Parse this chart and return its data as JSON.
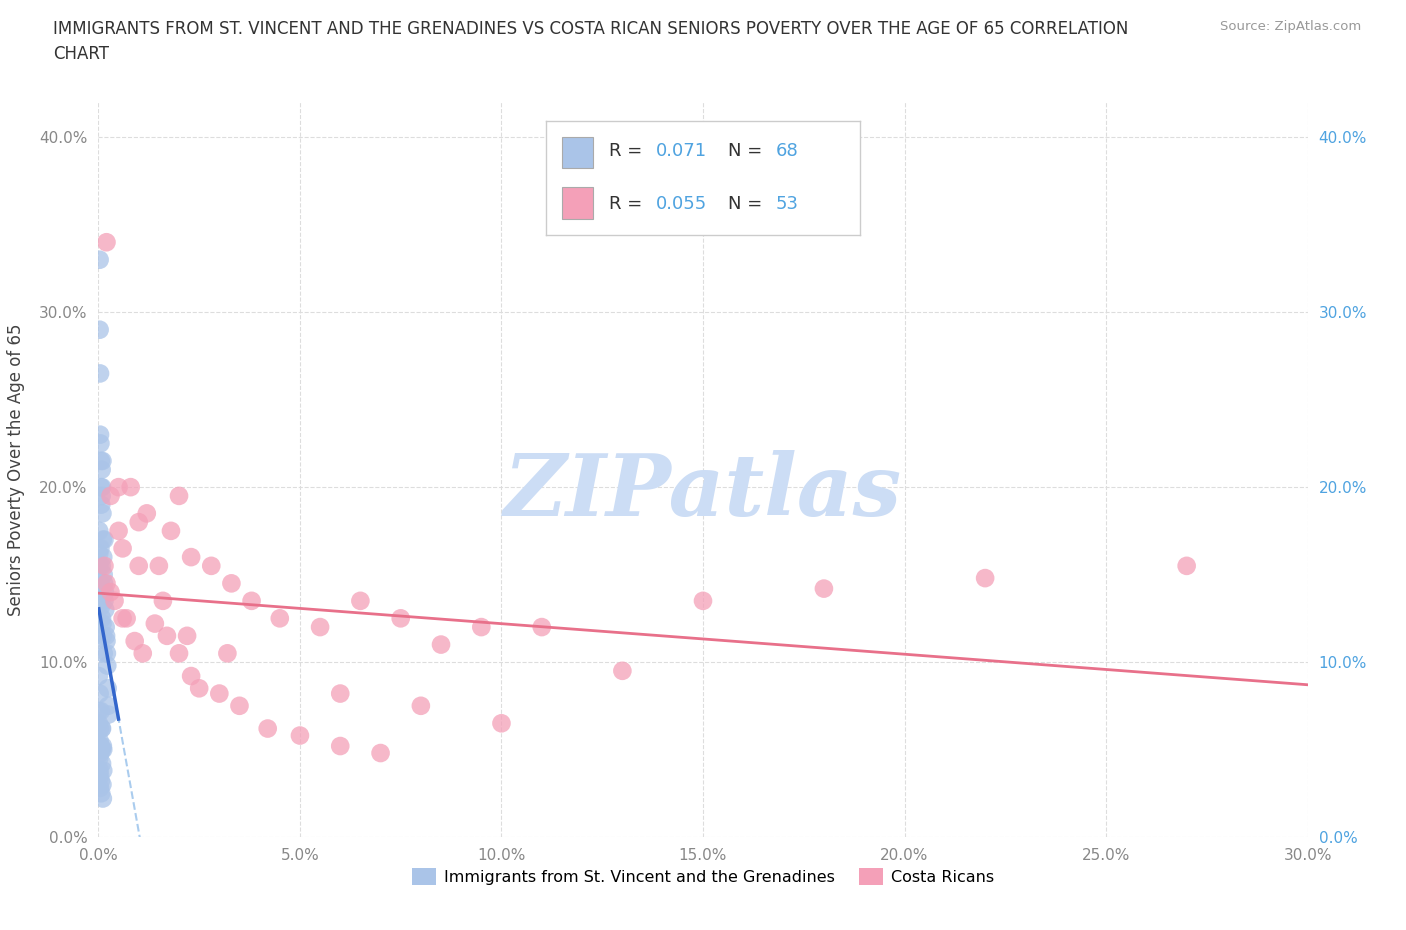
{
  "title_line1": "IMMIGRANTS FROM ST. VINCENT AND THE GRENADINES VS COSTA RICAN SENIORS POVERTY OVER THE AGE OF 65 CORRELATION",
  "title_line2": "CHART",
  "source_text": "Source: ZipAtlas.com",
  "watermark": "ZIPatlas",
  "ylabel": "Seniors Poverty Over the Age of 65",
  "xlim": [
    0.0,
    0.3
  ],
  "ylim": [
    0.0,
    0.42
  ],
  "xticks": [
    0.0,
    0.05,
    0.1,
    0.15,
    0.2,
    0.25,
    0.3
  ],
  "xtick_labels": [
    "0.0%",
    "5.0%",
    "10.0%",
    "15.0%",
    "20.0%",
    "25.0%",
    "30.0%"
  ],
  "yticks": [
    0.0,
    0.1,
    0.2,
    0.3,
    0.4
  ],
  "ytick_labels": [
    "0.0%",
    "10.0%",
    "20.0%",
    "30.0%",
    "40.0%"
  ],
  "blue_color": "#aac4e8",
  "pink_color": "#f4a0b8",
  "blue_R": 0.071,
  "blue_N": 68,
  "pink_R": 0.055,
  "pink_N": 53,
  "legend_label_blue": "Immigrants from St. Vincent and the Grenadines",
  "legend_label_pink": "Costa Ricans",
  "grid_color": "#dddddd",
  "watermark_color": "#ccddf5",
  "background_color": "#ffffff",
  "trend_dash_color": "#aaccee",
  "trend_solid_blue_color": "#3366cc",
  "trend_solid_pink_color": "#e8708a",
  "right_tick_color": "#4fa3e0",
  "left_tick_color": "#888888",
  "blue_scatter_x": [
    0.0002,
    0.0003,
    0.0004,
    0.0005,
    0.0006,
    0.0007,
    0.0008,
    0.0009,
    0.001,
    0.001,
    0.0011,
    0.0012,
    0.0013,
    0.0014,
    0.0015,
    0.0015,
    0.0016,
    0.0017,
    0.0018,
    0.0019,
    0.002,
    0.0021,
    0.0022,
    0.0023,
    0.0024,
    0.0025,
    0.0003,
    0.0004,
    0.0006,
    0.0008,
    0.0002,
    0.0005,
    0.0007,
    0.0009,
    0.0011,
    0.0013,
    0.0001,
    0.0003,
    0.0006,
    0.0009,
    0.0012,
    0.0002,
    0.0004,
    0.0007,
    0.001,
    0.0001,
    0.0004,
    0.0008,
    0.0011,
    0.0002,
    0.0005,
    0.0009,
    0.0012,
    0.0003,
    0.0006,
    0.001,
    0.0004,
    0.0007,
    0.0011,
    0.0002,
    0.0005,
    0.0008,
    0.0001,
    0.0003,
    0.0006,
    0.0009,
    0.0002,
    0.0004
  ],
  "blue_scatter_y": [
    0.155,
    0.29,
    0.265,
    0.225,
    0.2,
    0.19,
    0.21,
    0.2,
    0.185,
    0.215,
    0.17,
    0.16,
    0.15,
    0.145,
    0.135,
    0.17,
    0.14,
    0.13,
    0.12,
    0.115,
    0.112,
    0.105,
    0.098,
    0.085,
    0.075,
    0.07,
    0.33,
    0.23,
    0.215,
    0.195,
    0.155,
    0.145,
    0.135,
    0.125,
    0.115,
    0.105,
    0.065,
    0.055,
    0.052,
    0.05,
    0.05,
    0.162,
    0.142,
    0.132,
    0.122,
    0.072,
    0.062,
    0.062,
    0.052,
    0.052,
    0.048,
    0.042,
    0.038,
    0.038,
    0.032,
    0.03,
    0.028,
    0.025,
    0.022,
    0.175,
    0.165,
    0.155,
    0.092,
    0.082,
    0.072,
    0.062,
    0.045,
    0.035
  ],
  "pink_scatter_x": [
    0.0015,
    0.002,
    0.003,
    0.004,
    0.005,
    0.006,
    0.008,
    0.01,
    0.012,
    0.015,
    0.018,
    0.02,
    0.023,
    0.028,
    0.033,
    0.038,
    0.045,
    0.055,
    0.065,
    0.075,
    0.085,
    0.095,
    0.11,
    0.13,
    0.003,
    0.005,
    0.007,
    0.009,
    0.011,
    0.014,
    0.017,
    0.02,
    0.023,
    0.025,
    0.03,
    0.035,
    0.042,
    0.05,
    0.06,
    0.07,
    0.002,
    0.006,
    0.01,
    0.016,
    0.022,
    0.032,
    0.06,
    0.08,
    0.1,
    0.15,
    0.18,
    0.22,
    0.27
  ],
  "pink_scatter_y": [
    0.155,
    0.145,
    0.195,
    0.135,
    0.175,
    0.165,
    0.2,
    0.18,
    0.185,
    0.155,
    0.175,
    0.195,
    0.16,
    0.155,
    0.145,
    0.135,
    0.125,
    0.12,
    0.135,
    0.125,
    0.11,
    0.12,
    0.12,
    0.095,
    0.14,
    0.2,
    0.125,
    0.112,
    0.105,
    0.122,
    0.115,
    0.105,
    0.092,
    0.085,
    0.082,
    0.075,
    0.062,
    0.058,
    0.052,
    0.048,
    0.34,
    0.125,
    0.155,
    0.135,
    0.115,
    0.105,
    0.082,
    0.075,
    0.065,
    0.135,
    0.142,
    0.148,
    0.155
  ]
}
